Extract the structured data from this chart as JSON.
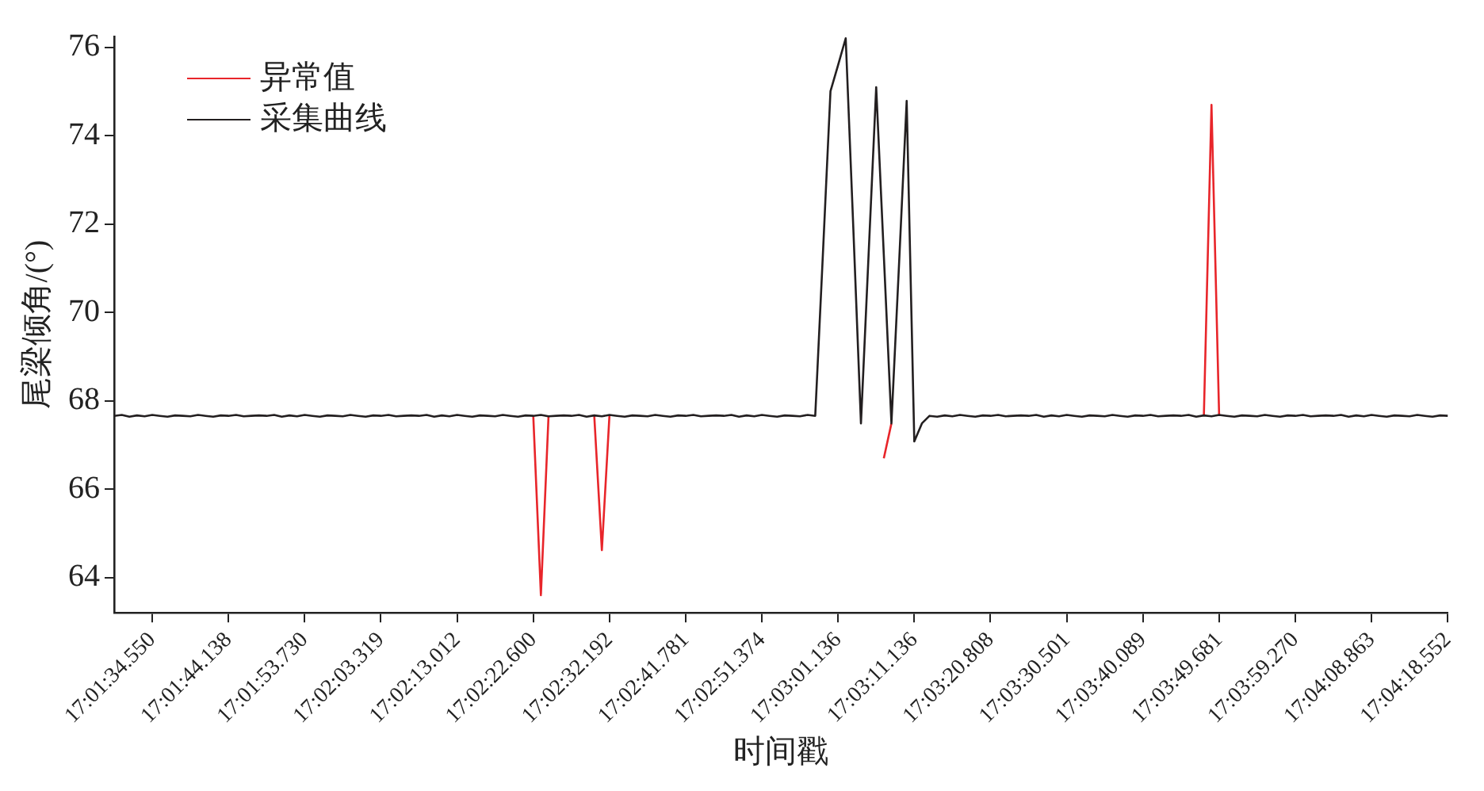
{
  "chart_data": {
    "type": "line",
    "xlabel": "时间戳",
    "ylabel": "尾梁倾角/(°)",
    "categories": [
      null,
      null,
      null,
      null,
      null,
      "17:01:34.550",
      null,
      null,
      null,
      null,
      null,
      null,
      null,
      null,
      null,
      "17:01:44.138",
      null,
      null,
      null,
      null,
      null,
      null,
      null,
      null,
      null,
      "17:01:53.730",
      null,
      null,
      null,
      null,
      null,
      null,
      null,
      null,
      null,
      "17:02:03.319",
      null,
      null,
      null,
      null,
      null,
      null,
      null,
      null,
      null,
      "17:02:13.012",
      null,
      null,
      null,
      null,
      null,
      null,
      null,
      null,
      null,
      "17:02:22.600",
      null,
      null,
      null,
      null,
      null,
      null,
      null,
      null,
      null,
      "17:02:32.192",
      null,
      null,
      null,
      null,
      null,
      null,
      null,
      null,
      null,
      "17:02:41.781",
      null,
      null,
      null,
      null,
      null,
      null,
      null,
      null,
      null,
      "17:02:51.374",
      null,
      null,
      null,
      null,
      null,
      null,
      null,
      null,
      null,
      "17:03:01.136",
      null,
      null,
      null,
      null,
      null,
      null,
      null,
      null,
      null,
      "17:03:11.136",
      null,
      null,
      null,
      null,
      null,
      null,
      null,
      null,
      null,
      "17:03:20.808",
      null,
      null,
      null,
      null,
      null,
      null,
      null,
      null,
      null,
      "17:03:30.501",
      null,
      null,
      null,
      null,
      null,
      null,
      null,
      null,
      null,
      "17:03:40.089",
      null,
      null,
      null,
      null,
      null,
      null,
      null,
      null,
      null,
      "17:03:49.681",
      null,
      null,
      null,
      null,
      null,
      null,
      null,
      null,
      null,
      "17:03:59.270",
      null,
      null,
      null,
      null,
      null,
      null,
      null,
      null,
      null,
      "17:04:08.863",
      null,
      null,
      null,
      null,
      null,
      null,
      null,
      null,
      null,
      "17:04:18.552"
    ],
    "ylim": [
      63.2,
      76.25
    ],
    "yticks": [
      64,
      66,
      68,
      70,
      72,
      74,
      76
    ],
    "legend": "top left",
    "marker": "none",
    "line_style": "solid",
    "series": [
      {
        "name": "异常值",
        "color": "#e8252a",
        "values": [
          null,
          null,
          null,
          null,
          null,
          null,
          null,
          null,
          null,
          null,
          null,
          null,
          null,
          null,
          null,
          null,
          null,
          null,
          null,
          null,
          null,
          null,
          null,
          null,
          null,
          null,
          null,
          null,
          null,
          null,
          null,
          null,
          null,
          null,
          null,
          null,
          null,
          null,
          null,
          null,
          null,
          null,
          null,
          null,
          null,
          null,
          null,
          null,
          null,
          null,
          null,
          null,
          null,
          null,
          null,
          67.66,
          63.6,
          67.65,
          null,
          null,
          null,
          null,
          null,
          67.67,
          64.62,
          67.68,
          null,
          null,
          null,
          null,
          null,
          null,
          null,
          null,
          null,
          null,
          null,
          null,
          null,
          null,
          null,
          null,
          null,
          null,
          null,
          null,
          null,
          null,
          null,
          null,
          null,
          null,
          null,
          null,
          null,
          null,
          null,
          null,
          null,
          null,
          null,
          66.7,
          67.49,
          null,
          null,
          null,
          null,
          null,
          null,
          null,
          null,
          null,
          null,
          null,
          null,
          null,
          null,
          null,
          null,
          null,
          null,
          null,
          null,
          null,
          null,
          null,
          null,
          null,
          null,
          null,
          null,
          null,
          null,
          null,
          null,
          null,
          null,
          null,
          null,
          null,
          null,
          null,
          null,
          67.67,
          74.7,
          67.68,
          null,
          null,
          null,
          null,
          null,
          null,
          null,
          null,
          null,
          null,
          null,
          null,
          null,
          null,
          null,
          null,
          null,
          null,
          null,
          null,
          null,
          null,
          null,
          null,
          null,
          null,
          null,
          null,
          null,
          null
        ]
      },
      {
        "name": "采集曲线",
        "color": "#231f20",
        "values": [
          67.66,
          67.68,
          67.64,
          67.67,
          67.65,
          67.68,
          67.66,
          67.64,
          67.67,
          67.66,
          67.65,
          67.68,
          67.66,
          67.64,
          67.67,
          67.66,
          67.68,
          67.65,
          67.66,
          67.67,
          67.66,
          67.68,
          67.64,
          67.67,
          67.65,
          67.68,
          67.66,
          67.64,
          67.67,
          67.66,
          67.65,
          67.68,
          67.66,
          67.64,
          67.67,
          67.66,
          67.68,
          67.65,
          67.66,
          67.67,
          67.66,
          67.68,
          67.64,
          67.67,
          67.65,
          67.68,
          67.66,
          67.64,
          67.67,
          67.66,
          67.65,
          67.68,
          67.66,
          67.64,
          67.67,
          67.66,
          67.68,
          67.65,
          67.66,
          67.67,
          67.66,
          67.68,
          67.64,
          67.67,
          67.65,
          67.68,
          67.66,
          67.64,
          67.67,
          67.66,
          67.65,
          67.68,
          67.66,
          67.64,
          67.67,
          67.66,
          67.68,
          67.65,
          67.66,
          67.67,
          67.66,
          67.68,
          67.64,
          67.67,
          67.65,
          67.68,
          67.66,
          67.64,
          67.67,
          67.66,
          67.65,
          67.68,
          67.66,
          71.3,
          75.01,
          75.6,
          76.21,
          71.9,
          67.49,
          71.3,
          75.1,
          71.3,
          67.49,
          71.1,
          74.79,
          67.08,
          67.49,
          67.66,
          67.64,
          67.67,
          67.65,
          67.68,
          67.66,
          67.64,
          67.67,
          67.66,
          67.68,
          67.65,
          67.66,
          67.67,
          67.66,
          67.68,
          67.64,
          67.67,
          67.65,
          67.68,
          67.66,
          67.64,
          67.67,
          67.66,
          67.65,
          67.68,
          67.66,
          67.64,
          67.67,
          67.66,
          67.68,
          67.65,
          67.66,
          67.67,
          67.66,
          67.68,
          67.64,
          67.67,
          67.65,
          67.68,
          67.66,
          67.64,
          67.67,
          67.66,
          67.65,
          67.68,
          67.66,
          67.64,
          67.67,
          67.66,
          67.68,
          67.65,
          67.66,
          67.67,
          67.66,
          67.68,
          67.64,
          67.67,
          67.65,
          67.68,
          67.66,
          67.64,
          67.67,
          67.66,
          67.65,
          67.68,
          67.66,
          67.64,
          67.67,
          67.66
        ]
      }
    ]
  }
}
